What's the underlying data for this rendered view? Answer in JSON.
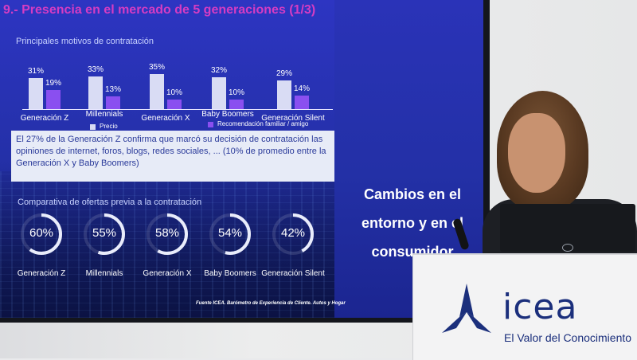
{
  "slide": {
    "title": "9.- Presencia en el mercado de 5 generaciones (1/3)",
    "section1_title": "Principales motivos de contratación",
    "bars": [
      {
        "label": "Generación Z",
        "precio": "31%",
        "recomendacion": "19%",
        "precio_value": 31,
        "rec_value": 19
      },
      {
        "label": "Millennials",
        "precio": "33%",
        "recomendacion": "13%",
        "precio_value": 33,
        "rec_value": 13
      },
      {
        "label": "Generación X",
        "precio": "35%",
        "recomendacion": "10%",
        "precio_value": 35,
        "rec_value": 10
      },
      {
        "label": "Baby Boomers",
        "precio": "32%",
        "recomendacion": "10%",
        "precio_value": 32,
        "rec_value": 10
      },
      {
        "label": "Generación Silent",
        "precio": "29%",
        "recomendacion": "14%",
        "precio_value": 29,
        "rec_value": 14
      }
    ],
    "legend_precio": "Precio",
    "legend_recomendacion": "Recomendación familiar / amigo",
    "note": "El 27% de la Generación Z confirma que marcó su decisión de contratación las opiniones de internet, foros, blogs, redes sociales, ... (10% de promedio entre la Generación X y Baby Boomers)",
    "section2_title": "Comparativa de ofertas previa a la contratación",
    "donuts": [
      {
        "label": "Generación Z",
        "pct": "60%",
        "value": 60
      },
      {
        "label": "Millennials",
        "pct": "55%",
        "value": 55
      },
      {
        "label": "Generación X",
        "pct": "58%",
        "value": 58
      },
      {
        "label": "Baby Boomers",
        "pct": "54%",
        "value": 54
      },
      {
        "label": "Generación Silent",
        "pct": "42%",
        "value": 42
      }
    ],
    "source": "Fuente ICEA. Barómetro de Experiencia de Cliente. Autos y Hogar",
    "right_text_line1": "Cambios en el",
    "right_text_line2": "entorno y en el",
    "right_text_line3": "consumidor"
  },
  "podium": {
    "brand": "icea",
    "tagline": "El Valor del Conocimiento"
  },
  "colors": {
    "slide_bg": "#2a33b8",
    "title_color": "#d53cc3",
    "precio_bar": "#d9dcf4",
    "recomendacion_bar": "#8a4ff0",
    "brand_blue": "#1b2f7c"
  }
}
